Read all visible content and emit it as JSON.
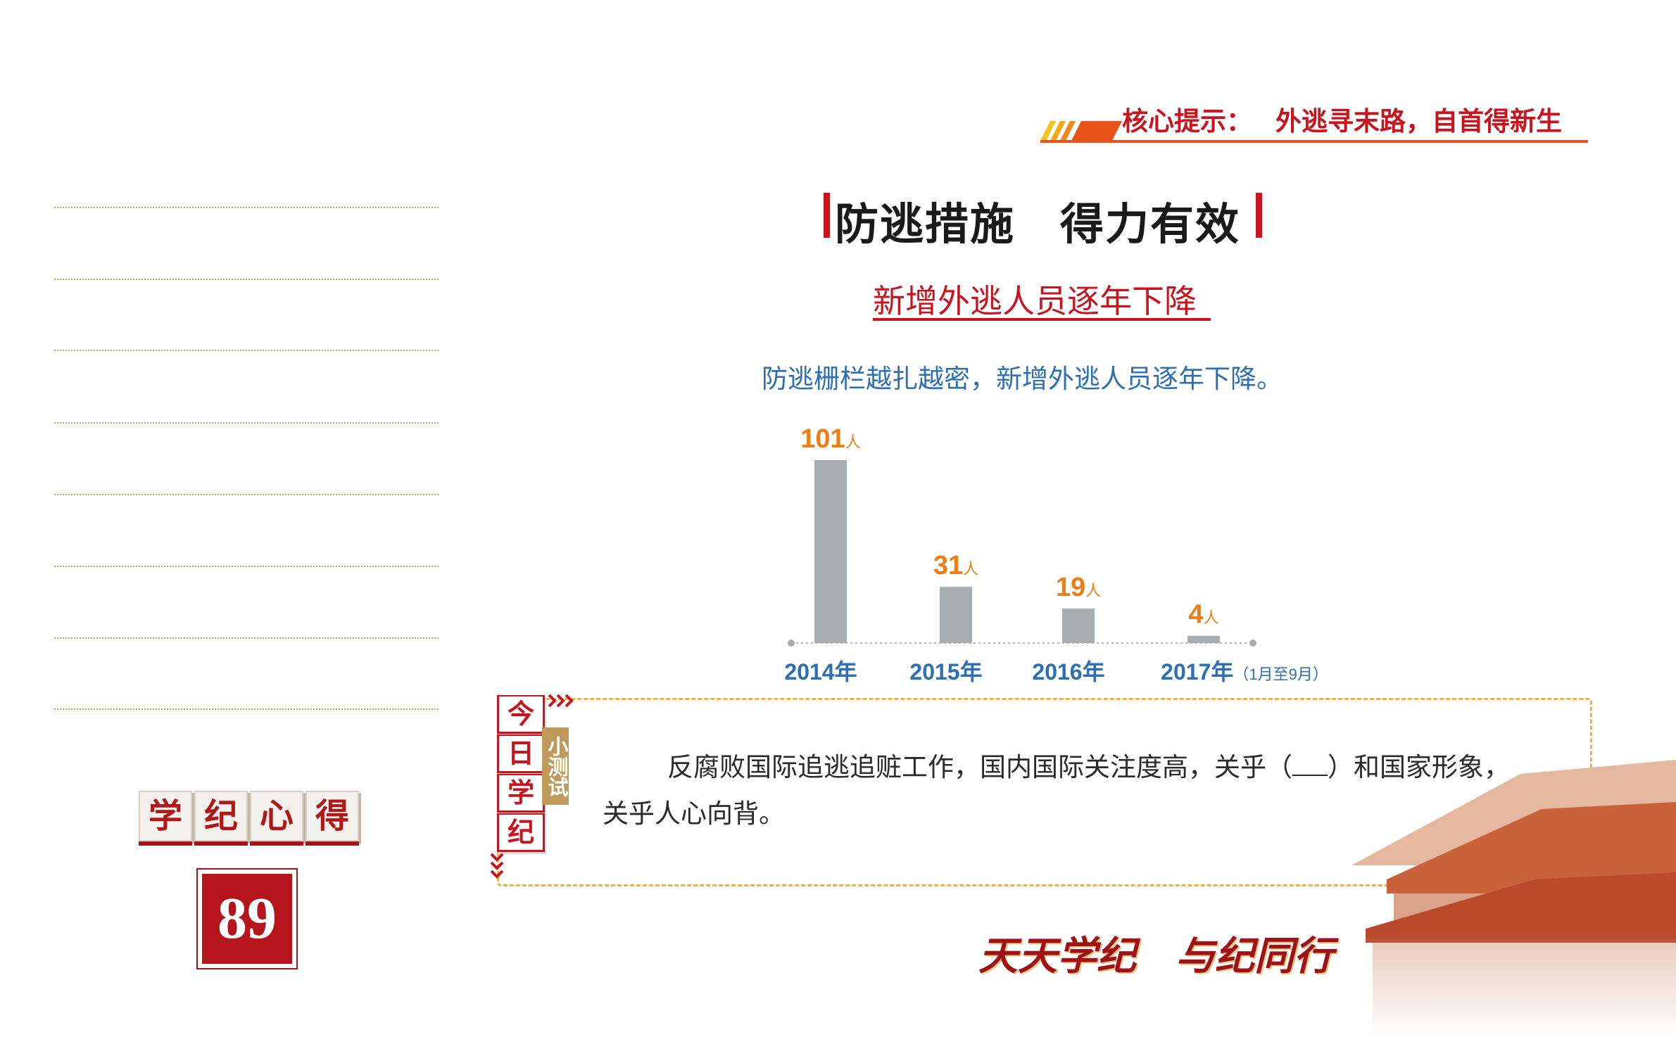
{
  "header": {
    "hint_label": "核心提示：",
    "hint_text": "外逃寻末路，自首得新生"
  },
  "section": {
    "title": "防逃措施　得力有效",
    "chart_title": "新增外逃人员逐年下降",
    "chart_subtitle": "防逃栅栏越扎越密，新增外逃人员逐年下降。"
  },
  "chart_data": {
    "type": "bar",
    "categories": [
      "2014年",
      "2015年",
      "2016年",
      "2017年"
    ],
    "category_notes": [
      "",
      "",
      "",
      "（1月至9月）"
    ],
    "values": [
      101,
      31,
      19,
      4
    ],
    "value_labels": [
      "101",
      "31",
      "19",
      "4"
    ],
    "unit": "人",
    "bar_color": "#a9acaf",
    "label_color": "#ef7d16",
    "category_color": "#2e6fb4"
  },
  "stamp": {
    "chars": [
      "学",
      "纪",
      "心",
      "得"
    ],
    "page_number": "89"
  },
  "quiz": {
    "tabs": [
      "今",
      "日",
      "学",
      "纪"
    ],
    "side_label": "小测试",
    "text_before": "反腐败国际追逃追赃工作，国内国际关注度高，关乎（",
    "text_after": "）和国家形象，关乎人心向背。"
  },
  "footer": {
    "slogan": "天天学纪　与纪同行"
  },
  "colors": {
    "accent_red": "#c8141e",
    "accent_orange": "#e8541c",
    "dashed_border": "#f2b13a"
  }
}
